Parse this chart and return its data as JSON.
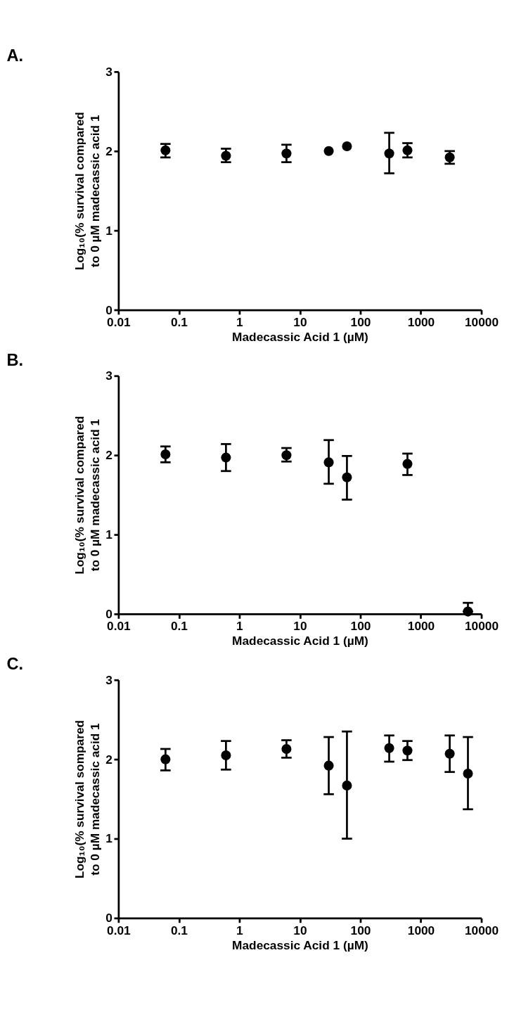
{
  "chart_data": [
    {
      "type": "scatter",
      "title": "A.",
      "xlabel": "Madecassic Acid 1 (µM)",
      "ylabel": "Log₁₀(% survival  compared\nto 0 µM madecassic acid 1",
      "log": "x",
      "xlim": [
        0.01,
        10000
      ],
      "xticks": [
        0.01,
        0.1,
        1,
        10,
        100,
        1000,
        10000
      ],
      "ylim": [
        0,
        3
      ],
      "yticks": [
        0,
        1,
        2,
        3
      ],
      "grid": false,
      "marker": "circle",
      "series": [
        {
          "color": "#000000",
          "x": [
            0.06,
            0.6,
            6,
            30,
            60,
            300,
            600,
            3000
          ],
          "values": [
            2.01,
            1.94,
            1.97,
            2.0,
            2.06,
            1.97,
            2.01,
            1.92
          ],
          "errors": [
            [
              1.92,
              2.09
            ],
            [
              1.86,
              2.03
            ],
            [
              1.86,
              2.08
            ],
            null,
            null,
            [
              1.72,
              2.23
            ],
            [
              1.92,
              2.1
            ],
            [
              1.84,
              2.0
            ]
          ]
        }
      ]
    },
    {
      "type": "scatter",
      "title": "B.",
      "xlabel": "Madecassic Acid 1 (µM)",
      "ylabel": "Log₁₀(% survival  compared\nto 0 µM madecassic acid 1",
      "log": "x",
      "xlim": [
        0.01,
        10000
      ],
      "xticks": [
        0.01,
        0.1,
        1,
        10,
        100,
        1000,
        10000
      ],
      "ylim": [
        0,
        3
      ],
      "yticks": [
        0,
        1,
        2,
        3
      ],
      "grid": false,
      "marker": "circle",
      "series": [
        {
          "color": "#000000",
          "x": [
            0.06,
            0.6,
            6,
            30,
            60,
            600,
            6000
          ],
          "values": [
            2.01,
            1.97,
            2.0,
            1.91,
            1.72,
            1.89,
            0.03
          ],
          "errors": [
            [
              1.91,
              2.11
            ],
            [
              1.8,
              2.14
            ],
            [
              1.92,
              2.09
            ],
            [
              1.64,
              2.19
            ],
            [
              1.44,
              1.99
            ],
            [
              1.75,
              2.02
            ],
            [
              0.03,
              0.14
            ]
          ]
        }
      ]
    },
    {
      "type": "scatter",
      "title": "C.",
      "xlabel": "Madecassic Acid 1 (µM)",
      "ylabel": "Log₁₀(% survival  sompared\nto 0 µM madecassic acid 1",
      "log": "x",
      "xlim": [
        0.01,
        10000
      ],
      "xticks": [
        0.01,
        0.1,
        1,
        10,
        100,
        1000,
        10000
      ],
      "ylim": [
        0,
        3
      ],
      "yticks": [
        0,
        1,
        2,
        3
      ],
      "grid": false,
      "marker": "circle",
      "series": [
        {
          "color": "#000000",
          "x": [
            0.06,
            0.6,
            6,
            30,
            60,
            300,
            600,
            3000,
            6000
          ],
          "values": [
            2.0,
            2.05,
            2.13,
            1.92,
            1.67,
            2.14,
            2.11,
            2.07,
            1.82
          ],
          "errors": [
            [
              1.86,
              2.13
            ],
            [
              1.87,
              2.23
            ],
            [
              2.02,
              2.24
            ],
            [
              1.56,
              2.28
            ],
            [
              1.0,
              2.35
            ],
            [
              1.97,
              2.3
            ],
            [
              1.99,
              2.23
            ],
            [
              1.84,
              2.3
            ],
            [
              1.37,
              2.28
            ]
          ]
        }
      ]
    }
  ]
}
